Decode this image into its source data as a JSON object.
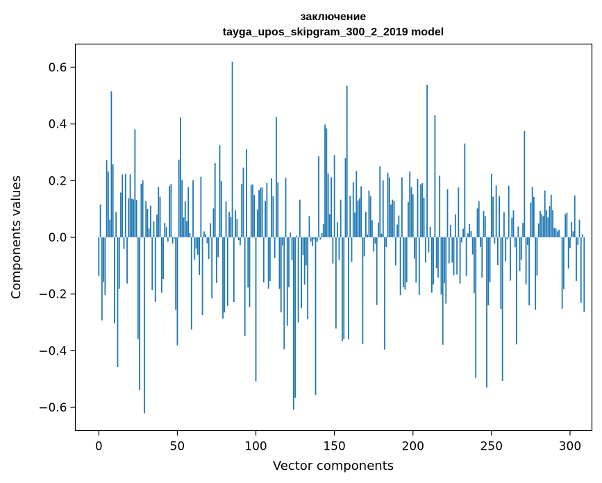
{
  "chart_data": {
    "type": "bar",
    "title": "заключение",
    "subtitle": "tayga_upos_skipgram_300_2_2019 model",
    "xlabel": "Vector components",
    "ylabel": "Components values",
    "xlim": [
      -14.95,
      313.95
    ],
    "ylim": [
      -0.682,
      0.682
    ],
    "xticks": [
      0,
      50,
      100,
      150,
      200,
      250,
      300
    ],
    "yticks": [
      -0.6,
      -0.4,
      -0.2,
      0.0,
      0.2,
      0.4,
      0.6
    ],
    "ytick_labels": [
      "−0.6",
      "−0.4",
      "−0.2",
      "0.0",
      "0.2",
      "0.4",
      "0.6"
    ],
    "bar_color": "#1f77b4",
    "grid": false,
    "values": [
      -0.136,
      0.116,
      -0.293,
      -0.158,
      -0.204,
      0.272,
      0.232,
      0.062,
      0.516,
      0.258,
      -0.303,
      0.089,
      -0.458,
      -0.181,
      0.158,
      0.222,
      -0.041,
      0.224,
      -0.163,
      0.138,
      0.222,
      0.136,
      0.134,
      0.381,
      0.132,
      -0.359,
      -0.539,
      0.189,
      0.201,
      -0.621,
      0.128,
      0.1,
      0.031,
      0.112,
      -0.186,
      0.056,
      -0.228,
      0.08,
      0.178,
      0.143,
      -0.195,
      -0.147,
      0.051,
      0.036,
      -0.015,
      0.181,
      0.188,
      -0.022,
      -0.004,
      -0.256,
      -0.381,
      0.274,
      0.423,
      0.203,
      0.07,
      0.127,
      0.057,
      0.177,
      0.015,
      -0.325,
      0.202,
      -0.079,
      -0.04,
      -0.061,
      -0.132,
      0.214,
      -0.274,
      0.021,
      0.011,
      -0.021,
      -0.076,
      0.05,
      -0.215,
      0.102,
      0.262,
      -0.161,
      -0.07,
      0.325,
      0.198,
      -0.287,
      -0.265,
      0.127,
      -0.242,
      0.09,
      0.071,
      0.62,
      -0.228,
      0.095,
      0.065,
      -0.01,
      -0.028,
      0.188,
      0.246,
      -0.348,
      0.311,
      -0.177,
      -0.246,
      0.185,
      0.187,
      0.149,
      -0.508,
      0.098,
      0.166,
      0.175,
      0.176,
      -0.159,
      0.128,
      0.192,
      -0.181,
      -0.154,
      0.208,
      0.145,
      -0.073,
      0.425,
      0.194,
      -0.182,
      -0.265,
      -0.029,
      -0.395,
      0.21,
      -0.312,
      -0.176,
      0.017,
      -0.081,
      -0.609,
      -0.566,
      0.006,
      -0.3,
      0.133,
      -0.25,
      -0.063,
      -0.167,
      -0.099,
      -0.289,
      0.075,
      -0.015,
      -0.031,
      -0.007,
      -0.556,
      -0.016,
      0.286,
      -0.008,
      0.015,
      0.047,
      0.398,
      0.384,
      0.226,
      0.082,
      0.212,
      -0.092,
      0.29,
      -0.322,
      0.053,
      -0.08,
      0.133,
      -0.366,
      -0.359,
      0.279,
      0.535,
      -0.36,
      0.147,
      -0.087,
      0.195,
      0.087,
      0.234,
      0.13,
      0.137,
      0.18,
      -0.377,
      -0.067,
      0.09,
      0.01,
      0.165,
      0.146,
      0.06,
      -0.05,
      -0.022,
      -0.239,
      0.052,
      0.251,
      0.013,
      0.201,
      -0.396,
      -0.034,
      0.228,
      0.211,
      0.116,
      0.133,
      0.128,
      -0.099,
      0.045,
      0.077,
      -0.204,
      0.212,
      -0.176,
      -0.185,
      -0.158,
      0.125,
      0.232,
      0.177,
      0.152,
      -0.075,
      -0.16,
      0.206,
      -0.203,
      0.187,
      0.191,
      0.14,
      -0.089,
      0.538,
      -0.053,
      0.037,
      -0.195,
      -0.166,
      0.431,
      -0.108,
      -0.142,
      0.218,
      -0.202,
      -0.379,
      -0.162,
      -0.234,
      0.17,
      -0.092,
      0.044,
      -0.089,
      -0.134,
      0.081,
      -0.131,
      0.176,
      -0.163,
      -0.018,
      0.03,
      0.331,
      -0.136,
      0.014,
      0.047,
      0.022,
      -0.06,
      -0.197,
      -0.496,
      0.102,
      0.127,
      -0.034,
      -0.142,
      0.093,
      0.075,
      -0.53,
      -0.24,
      -0.158,
      0.224,
      0.143,
      -0.022,
      0.183,
      -0.098,
      0.145,
      -0.253,
      -0.507,
      0.088,
      -0.084,
      -0.007,
      0.182,
      -0.153,
      0.069,
      0.095,
      -0.035,
      -0.378,
      0.038,
      -0.119,
      -0.079,
      0.051,
      0.375,
      -0.166,
      -0.027,
      -0.24,
      0.123,
      0.178,
      0.142,
      -0.256,
      -0.135,
      0.049,
      0.093,
      0.082,
      0.075,
      0.165,
      0.095,
      0.07,
      0.11,
      0.15,
      0.096,
      0.033,
      0.031,
      0.021,
      0.027,
      0.002,
      -0.252,
      -0.183,
      0.082,
      0.087,
      -0.11,
      -0.038,
      0.054,
      0.021,
      0.148,
      -0.154,
      -0.027,
      0.062,
      -0.231,
      0.011,
      -0.263
    ]
  }
}
